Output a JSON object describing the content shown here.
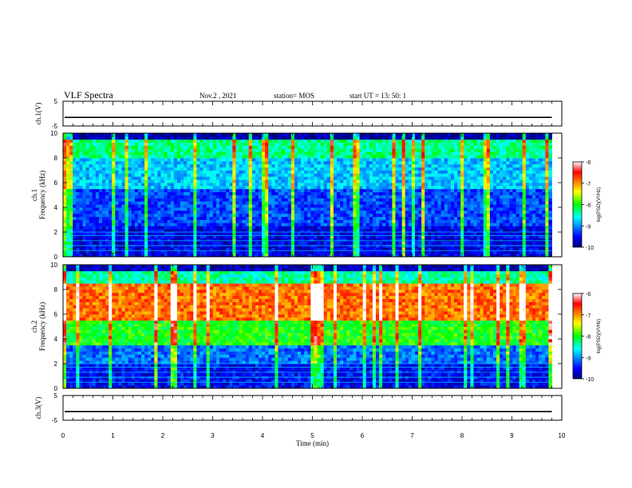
{
  "header": {
    "title": "VLF Spectra",
    "date": "Nov.2 , 2021",
    "station": "station= MOS",
    "start": "start UT = 13: 50: 1"
  },
  "chart_data": [
    {
      "type": "line",
      "ylabel": "ch.1(V)",
      "ylim": [
        -5,
        5
      ],
      "yticks": [
        -5,
        5
      ],
      "xlim": [
        0,
        10
      ],
      "level": -1.5
    },
    {
      "type": "heatmap",
      "ylabel": "ch.1\nFrequency (kHz)",
      "ylim": [
        0,
        10
      ],
      "yticks": [
        0,
        2,
        4,
        6,
        8,
        10
      ],
      "xlim": [
        0,
        10
      ],
      "data_end": 9.8,
      "colorbar": {
        "label": "log(PSD)(V²/Hz)",
        "range": [
          -10,
          -6
        ],
        "ticks": [
          -6,
          -7,
          -8,
          -9,
          -10
        ]
      }
    },
    {
      "type": "heatmap",
      "ylabel": "ch.2\nFrequency (kHz)",
      "ylim": [
        0,
        10
      ],
      "yticks": [
        0,
        2,
        4,
        6,
        8,
        10
      ],
      "xlim": [
        0,
        10
      ],
      "data_end": 9.8,
      "colorbar": {
        "label": "log(PSD)(V²/Hz)",
        "range": [
          -10,
          -6
        ],
        "ticks": [
          -6,
          -7,
          -8,
          -9,
          -10
        ]
      }
    },
    {
      "type": "line",
      "ylabel": "ch.3(V)",
      "ylim": [
        -5,
        5
      ],
      "yticks": [
        -5,
        5
      ],
      "xlim": [
        0,
        10
      ],
      "xticks": [
        0,
        1,
        2,
        3,
        4,
        5,
        6,
        7,
        8,
        9,
        10
      ],
      "xlabel": "Time (min)",
      "level": -1.5
    }
  ]
}
